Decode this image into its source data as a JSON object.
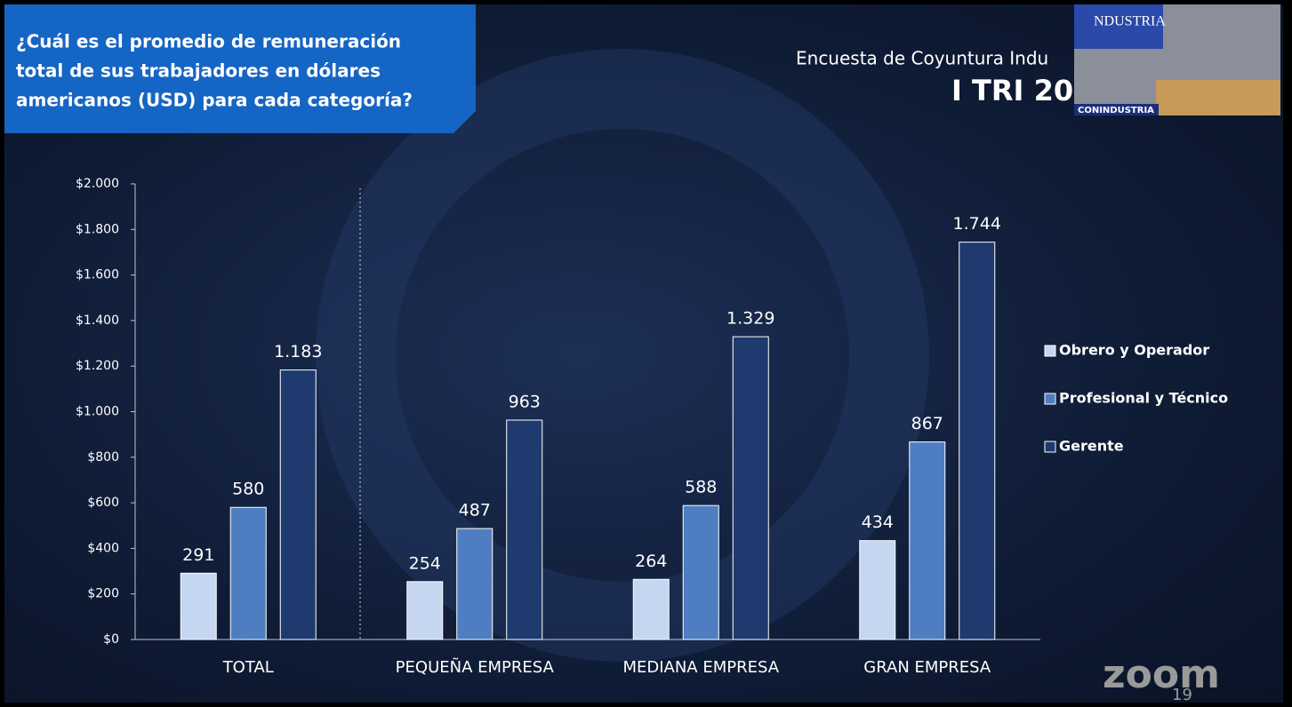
{
  "slide": {
    "question": [
      "¿Cuál es el promedio de remuneración",
      "total de sus trabajadores en dólares",
      "americanos (USD) para cada categoría?"
    ],
    "heading": "Encuesta de Coyuntura Indu",
    "period": "I TRI 20",
    "webcam_label": "CONINDUSTRIA",
    "webcam_banner": "NDUSTRIA",
    "watermark": "zoom",
    "page_number": "19"
  },
  "chart_data": {
    "type": "bar",
    "categories": [
      "TOTAL",
      "PEQUEÑA EMPRESA",
      "MEDIANA EMPRESA",
      "GRAN EMPRESA"
    ],
    "series": [
      {
        "name": "Obrero y Operador",
        "color": "#c5d6f0",
        "values": [
          291,
          254,
          264,
          434
        ],
        "value_labels": [
          "291",
          "254",
          "264",
          "434"
        ]
      },
      {
        "name": "Profesional y Técnico",
        "color": "#4f7dc2",
        "values": [
          580,
          487,
          588,
          867
        ],
        "value_labels": [
          "580",
          "487",
          "588",
          "867"
        ]
      },
      {
        "name": "Gerente",
        "color": "#1f3a6e",
        "values": [
          1183,
          963,
          1329,
          1744
        ],
        "value_labels": [
          "1.183",
          "963",
          "1.329",
          "1.744"
        ]
      }
    ],
    "ylim": [
      0,
      2000
    ],
    "yticks": [
      {
        "value": 0,
        "label": "$0"
      },
      {
        "value": 200,
        "label": "$200"
      },
      {
        "value": 400,
        "label": "$400"
      },
      {
        "value": 600,
        "label": "$600"
      },
      {
        "value": 800,
        "label": "$800"
      },
      {
        "value": 1000,
        "label": "$1.000"
      },
      {
        "value": 1200,
        "label": "$1.200"
      },
      {
        "value": 1400,
        "label": "$1.400"
      },
      {
        "value": 1600,
        "label": "$1.600"
      },
      {
        "value": 1800,
        "label": "$1.800"
      },
      {
        "value": 2000,
        "label": "$2.000"
      }
    ],
    "legend": "right"
  }
}
